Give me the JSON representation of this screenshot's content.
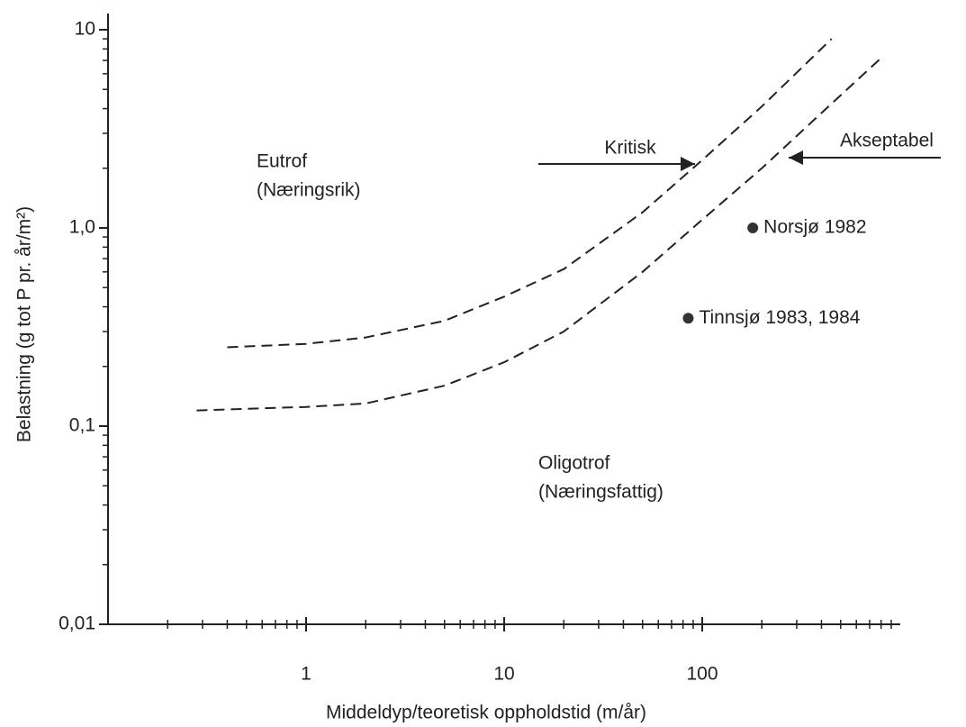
{
  "chart_data": {
    "type": "line",
    "xlabel": "Middeldyp/teoretisk oppholdstid (m/år)",
    "ylabel": "Belastning (g tot P pr. år/m²)",
    "xscale": "log",
    "yscale": "log",
    "xlim": [
      0.1,
      1000
    ],
    "ylim": [
      0.01,
      10
    ],
    "xticks": [
      1,
      10,
      100
    ],
    "xminorticks": [
      0.2,
      0.3,
      0.4,
      0.5,
      0.6,
      0.7,
      0.8,
      0.9,
      2,
      3,
      4,
      5,
      6,
      7,
      8,
      9,
      20,
      30,
      40,
      50,
      60,
      70,
      80,
      90,
      200,
      300,
      400,
      500,
      600,
      700,
      800,
      900
    ],
    "yticks": [
      {
        "value": 0.01,
        "label": "0,01"
      },
      {
        "value": 0.1,
        "label": "0,1"
      },
      {
        "value": 1,
        "label": "1,0"
      },
      {
        "value": 10,
        "label": "10"
      }
    ],
    "yminorticks": [
      0.02,
      0.03,
      0.04,
      0.05,
      0.06,
      0.07,
      0.08,
      0.09,
      0.2,
      0.3,
      0.4,
      0.5,
      0.6,
      0.7,
      0.8,
      0.9,
      2,
      3,
      4,
      5,
      6,
      7,
      8,
      9
    ],
    "series": [
      {
        "name": "Kritisk",
        "type": "dashed",
        "color": "#222",
        "x": [
          0.4,
          1,
          2,
          5,
          10,
          20,
          50,
          100,
          200,
          450
        ],
        "values": [
          0.25,
          0.26,
          0.28,
          0.34,
          0.45,
          0.62,
          1.2,
          2.2,
          4.1,
          9
        ]
      },
      {
        "name": "Akseptabel",
        "type": "dashed",
        "color": "#222",
        "x": [
          0.28,
          1,
          2,
          5,
          10,
          20,
          50,
          100,
          200,
          400,
          800
        ],
        "values": [
          0.12,
          0.125,
          0.13,
          0.16,
          0.21,
          0.3,
          0.6,
          1.1,
          2.0,
          3.8,
          7.2
        ]
      },
      {
        "name": "Norsjø 1982",
        "type": "scatter",
        "color": "#333",
        "x": [
          180
        ],
        "values": [
          1.0
        ]
      },
      {
        "name": "Tinnsjø 1983, 1984",
        "type": "scatter",
        "color": "#333",
        "x": [
          85
        ],
        "values": [
          0.35
        ]
      }
    ],
    "annotations": [
      "Eutrof",
      "(Næringsrik)",
      "Oligotrof",
      "(Næringsfattig)"
    ]
  }
}
